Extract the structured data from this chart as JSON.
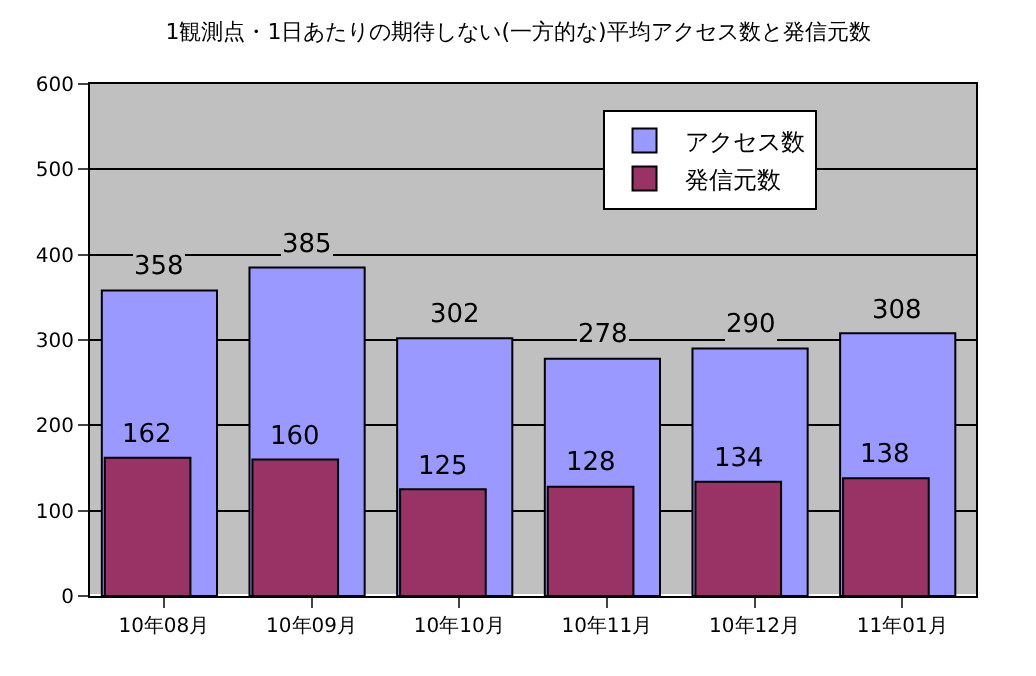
{
  "chart_data": {
    "type": "bar",
    "title": "1観測点・1日あたりの期待しない(一方的な)平均アクセス数と発信元数",
    "categories": [
      "10年08月",
      "10年09月",
      "10年10月",
      "10年11月",
      "10年12月",
      "11年01月"
    ],
    "series": [
      {
        "name": "アクセス数",
        "color": "#9999ff",
        "values": [
          358,
          385,
          302,
          278,
          290,
          308
        ]
      },
      {
        "name": "発信元数",
        "color": "#993366",
        "values": [
          162,
          160,
          125,
          128,
          134,
          138
        ]
      }
    ],
    "ylim": [
      0,
      600
    ],
    "yticks": [
      0,
      100,
      200,
      300,
      400,
      500,
      600
    ],
    "grid": "y",
    "legend": "top right",
    "data_labels": true
  }
}
